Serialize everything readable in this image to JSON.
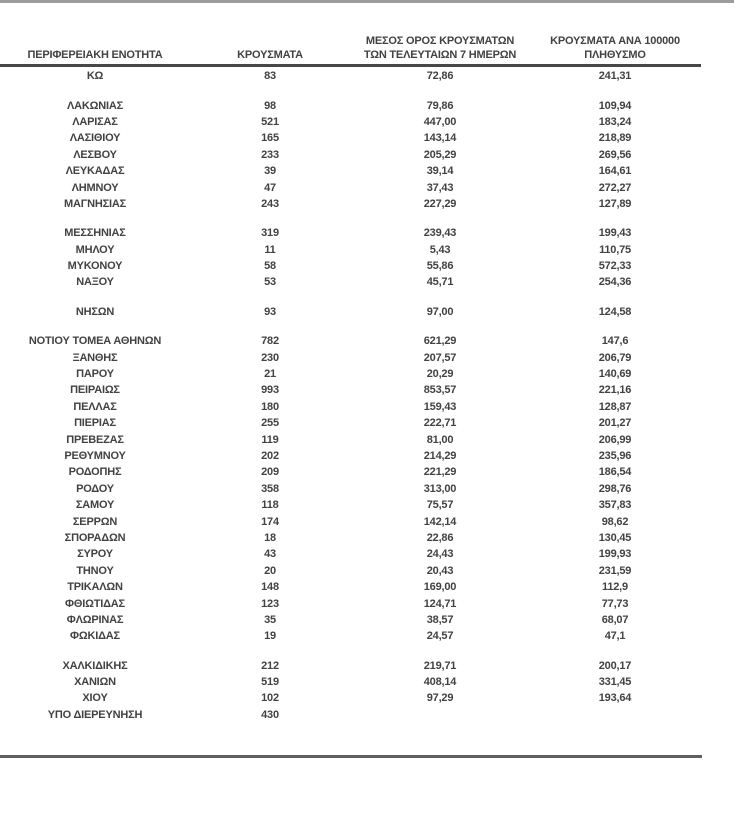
{
  "colors": {
    "text": "#424242",
    "top_rule": "#9c9c9c",
    "header_rule": "#474747",
    "bottom_rule": "#5f5f5f",
    "background": "#ffffff"
  },
  "table": {
    "columns": [
      {
        "line1": "",
        "line2": "ΠΕΡΙΦΕΡΕΙΑΚΗ ΕΝΟΤΗΤΑ"
      },
      {
        "line1": "",
        "line2": "ΚΡΟΥΣΜΑΤΑ"
      },
      {
        "line1": "ΜΕΣΟΣ ΟΡΟΣ ΚΡΟΥΣΜΑΤΩΝ",
        "line2": "ΤΩΝ ΤΕΛΕΥΤΑΙΩΝ 7 ΗΜΕΡΩΝ"
      },
      {
        "line1": "ΚΡΟΥΣΜΑΤΑ ΑΝΑ 100000",
        "line2": "ΠΛΗΘΥΣΜΟ"
      }
    ],
    "groups": [
      [
        {
          "name": "ΚΩ",
          "cases": "83",
          "avg7": "72,86",
          "per100k": "241,31"
        }
      ],
      [
        {
          "name": "ΛΑΚΩΝΙΑΣ",
          "cases": "98",
          "avg7": "79,86",
          "per100k": "109,94"
        },
        {
          "name": "ΛΑΡΙΣΑΣ",
          "cases": "521",
          "avg7": "447,00",
          "per100k": "183,24"
        },
        {
          "name": "ΛΑΣΙΘΙΟΥ",
          "cases": "165",
          "avg7": "143,14",
          "per100k": "218,89"
        },
        {
          "name": "ΛΕΣΒΟΥ",
          "cases": "233",
          "avg7": "205,29",
          "per100k": "269,56"
        },
        {
          "name": "ΛΕΥΚΑΔΑΣ",
          "cases": "39",
          "avg7": "39,14",
          "per100k": "164,61"
        },
        {
          "name": "ΛΗΜΝΟΥ",
          "cases": "47",
          "avg7": "37,43",
          "per100k": "272,27"
        },
        {
          "name": "ΜΑΓΝΗΣΙΑΣ",
          "cases": "243",
          "avg7": "227,29",
          "per100k": "127,89"
        }
      ],
      [
        {
          "name": "ΜΕΣΣΗΝΙΑΣ",
          "cases": "319",
          "avg7": "239,43",
          "per100k": "199,43"
        },
        {
          "name": "ΜΗΛΟΥ",
          "cases": "11",
          "avg7": "5,43",
          "per100k": "110,75"
        },
        {
          "name": "ΜΥΚΟΝΟΥ",
          "cases": "58",
          "avg7": "55,86",
          "per100k": "572,33"
        },
        {
          "name": "ΝΑΞΟΥ",
          "cases": "53",
          "avg7": "45,71",
          "per100k": "254,36"
        }
      ],
      [
        {
          "name": "ΝΗΣΩΝ",
          "cases": "93",
          "avg7": "97,00",
          "per100k": "124,58"
        }
      ],
      [
        {
          "name": "ΝΟΤΙΟΥ ΤΟΜΕΑ ΑΘΗΝΩΝ",
          "cases": "782",
          "avg7": "621,29",
          "per100k": "147,6"
        },
        {
          "name": "ΞΑΝΘΗΣ",
          "cases": "230",
          "avg7": "207,57",
          "per100k": "206,79"
        },
        {
          "name": "ΠΑΡΟΥ",
          "cases": "21",
          "avg7": "20,29",
          "per100k": "140,69"
        },
        {
          "name": "ΠΕΙΡΑΙΩΣ",
          "cases": "993",
          "avg7": "853,57",
          "per100k": "221,16"
        },
        {
          "name": "ΠΕΛΛΑΣ",
          "cases": "180",
          "avg7": "159,43",
          "per100k": "128,87"
        },
        {
          "name": "ΠΙΕΡΙΑΣ",
          "cases": "255",
          "avg7": "222,71",
          "per100k": "201,27"
        },
        {
          "name": "ΠΡΕΒΕΖΑΣ",
          "cases": "119",
          "avg7": "81,00",
          "per100k": "206,99"
        },
        {
          "name": "ΡΕΘΥΜΝΟΥ",
          "cases": "202",
          "avg7": "214,29",
          "per100k": "235,96"
        },
        {
          "name": "ΡΟΔΟΠΗΣ",
          "cases": "209",
          "avg7": "221,29",
          "per100k": "186,54"
        },
        {
          "name": "ΡΟΔΟΥ",
          "cases": "358",
          "avg7": "313,00",
          "per100k": "298,76"
        },
        {
          "name": "ΣΑΜΟΥ",
          "cases": "118",
          "avg7": "75,57",
          "per100k": "357,83"
        },
        {
          "name": "ΣΕΡΡΩΝ",
          "cases": "174",
          "avg7": "142,14",
          "per100k": "98,62"
        },
        {
          "name": "ΣΠΟΡΑΔΩΝ",
          "cases": "18",
          "avg7": "22,86",
          "per100k": "130,45"
        },
        {
          "name": "ΣΥΡΟΥ",
          "cases": "43",
          "avg7": "24,43",
          "per100k": "199,93"
        },
        {
          "name": "ΤΗΝΟΥ",
          "cases": "20",
          "avg7": "20,43",
          "per100k": "231,59"
        },
        {
          "name": "ΤΡΙΚΑΛΩΝ",
          "cases": "148",
          "avg7": "169,00",
          "per100k": "112,9"
        },
        {
          "name": "ΦΘΙΩΤΙΔΑΣ",
          "cases": "123",
          "avg7": "124,71",
          "per100k": "77,73"
        },
        {
          "name": "ΦΛΩΡΙΝΑΣ",
          "cases": "35",
          "avg7": "38,57",
          "per100k": "68,07"
        },
        {
          "name": "ΦΩΚΙΔΑΣ",
          "cases": "19",
          "avg7": "24,57",
          "per100k": "47,1"
        }
      ],
      [
        {
          "name": "ΧΑΛΚΙΔΙΚΗΣ",
          "cases": "212",
          "avg7": "219,71",
          "per100k": "200,17"
        },
        {
          "name": "ΧΑΝΙΩΝ",
          "cases": "519",
          "avg7": "408,14",
          "per100k": "331,45"
        },
        {
          "name": "ΧΙΟΥ",
          "cases": "102",
          "avg7": "97,29",
          "per100k": "193,64"
        },
        {
          "name": "ΥΠΟ ΔΙΕΡΕΥΝΗΣΗ",
          "cases": "430",
          "avg7": "",
          "per100k": ""
        }
      ]
    ]
  }
}
